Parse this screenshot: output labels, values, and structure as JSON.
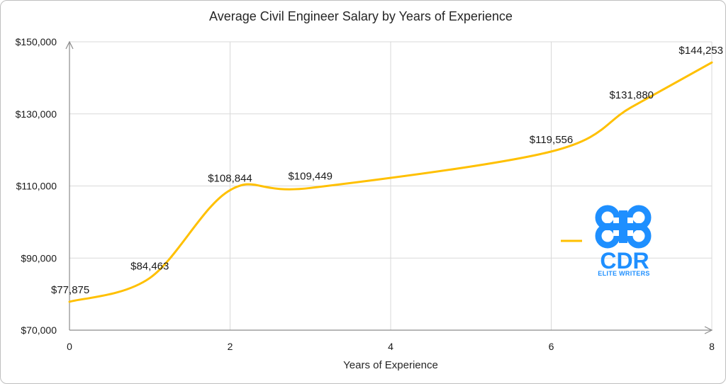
{
  "chart_data": {
    "type": "line",
    "title": "Average Civil Engineer Salary by Years of Experience",
    "xlabel": "Years of Experience",
    "ylabel": "",
    "x": [
      0,
      1,
      2,
      3,
      6,
      7,
      8
    ],
    "values": [
      77875,
      84463,
      108844,
      109449,
      119556,
      131880,
      144253
    ],
    "data_labels": [
      "$77,875",
      "$84,463",
      "$108,844",
      "$109,449",
      "$119,556",
      "$131,880",
      "$144,253"
    ],
    "xlim": [
      0,
      8
    ],
    "ylim": [
      70000,
      150000
    ],
    "x_ticks": [
      "0",
      "2",
      "4",
      "6",
      "8"
    ],
    "y_ticks": [
      "$70,000",
      "$90,000",
      "$110,000",
      "$130,000",
      "$150,000"
    ],
    "grid": true,
    "legend": "right",
    "line_color": "#ffc000",
    "smoothed": true
  },
  "logo": {
    "name": "cdr-elite-writers-logo",
    "text": "CDR",
    "tagline": "ELITE WRITERS",
    "color": "#1e8fff"
  }
}
